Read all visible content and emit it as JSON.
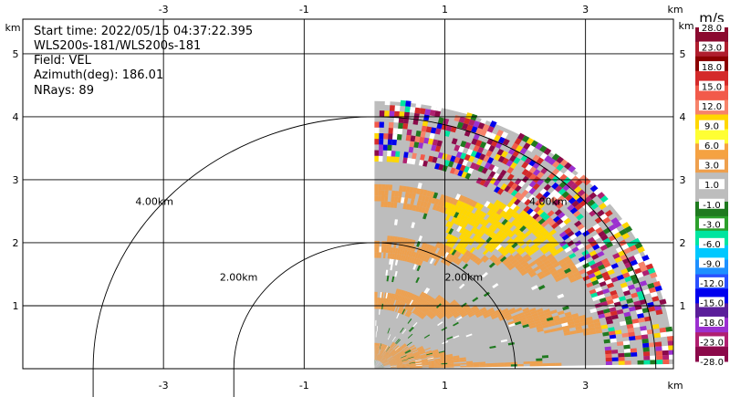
{
  "info": {
    "start_time": "Start time: 2022/05/15 04:37:22.395",
    "instrument": "WLS200s-181/WLS200s-181",
    "field": "Field: VEL",
    "azimuth": "Azimuth(deg): 186.01",
    "nrays": "NRays: 89"
  },
  "chart_data": {
    "type": "heatmap",
    "units_label": "km",
    "xlim": [
      -5.0,
      4.25
    ],
    "ylim": [
      0,
      5.55
    ],
    "x_ticks": [
      "-3",
      "-1",
      "1",
      "3"
    ],
    "x_tick_values": [
      -3,
      -1,
      1,
      3
    ],
    "y_ticks": [
      "1",
      "2",
      "3",
      "4",
      "5"
    ],
    "y_tick_values": [
      1,
      2,
      3,
      4,
      5
    ],
    "range_rings": [
      {
        "radius_km": 2.0,
        "label": "2.00km"
      },
      {
        "radius_km": 4.0,
        "label": "4.00km"
      }
    ],
    "sector": {
      "center_x_km": 0.0,
      "max_range_km": 4.25,
      "az_from_deg": 0,
      "az_to_deg": 89
    },
    "colorbar": {
      "units": "m/s",
      "tick_labels": [
        "28.0",
        "23.0",
        "18.0",
        "15.0",
        "12.0",
        "9.0",
        "6.0",
        "3.0",
        "1.0",
        "-1.0",
        "-3.0",
        "-6.0",
        "-9.0",
        "-12.0",
        "-15.0",
        "-18.0",
        "-23.0",
        "-28.0"
      ],
      "colors": [
        "#8b0a2f",
        "#b01e2e",
        "#8b0000",
        "#d42a2a",
        "#f25a4a",
        "#f7836a",
        "#ffd700",
        "#ffff33",
        "#f5a242",
        "#eea04e",
        "#bdbdbd",
        "#bdbdbd",
        "#1f7a1f",
        "#2ca02c",
        "#00e5a0",
        "#00c8ff",
        "#1e90ff",
        "#2a50ff",
        "#0000ee",
        "#5a1e9a",
        "#9b30d0",
        "#b02070",
        "#8b0a4a"
      ]
    },
    "field": "VEL"
  }
}
